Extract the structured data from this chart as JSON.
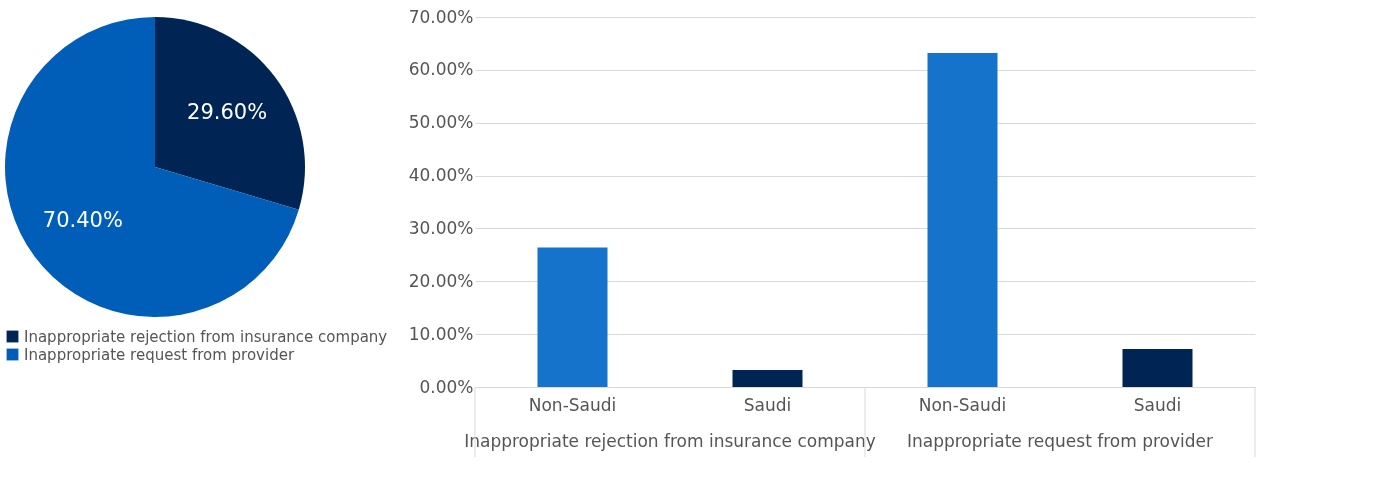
{
  "chart_data": [
    {
      "type": "pie",
      "categories": [
        "Inappropriate rejection from insurance company",
        "Inappropriate request from provider"
      ],
      "values": [
        29.6,
        70.4
      ],
      "colors": [
        "#002554",
        "#005eb8"
      ],
      "value_labels": [
        "29.60%",
        "70.40%"
      ],
      "legend": "bottom"
    },
    {
      "type": "bar",
      "categories": [
        "Non-Saudi",
        "Saudi",
        "Non-Saudi",
        "Saudi"
      ],
      "values": [
        26.4,
        3.2,
        63.2,
        7.2
      ],
      "colors": [
        "#1673cc",
        "#002554",
        "#1673cc",
        "#002554"
      ],
      "ylim": [
        0,
        70
      ],
      "yticks": [
        {
          "value": 0,
          "label": "0.00%"
        },
        {
          "value": 10,
          "label": "10.00%"
        },
        {
          "value": 20,
          "label": "20.00%"
        },
        {
          "value": 30,
          "label": "30.00%"
        },
        {
          "value": 40,
          "label": "40.00%"
        },
        {
          "value": 50,
          "label": "50.00%"
        },
        {
          "value": 60,
          "label": "60.00%"
        },
        {
          "value": 70,
          "label": "70.00%"
        }
      ],
      "grid": "y",
      "annotations": [
        "Inappropriate rejection from insurance company",
        "Inappropriate request from provider"
      ]
    }
  ]
}
